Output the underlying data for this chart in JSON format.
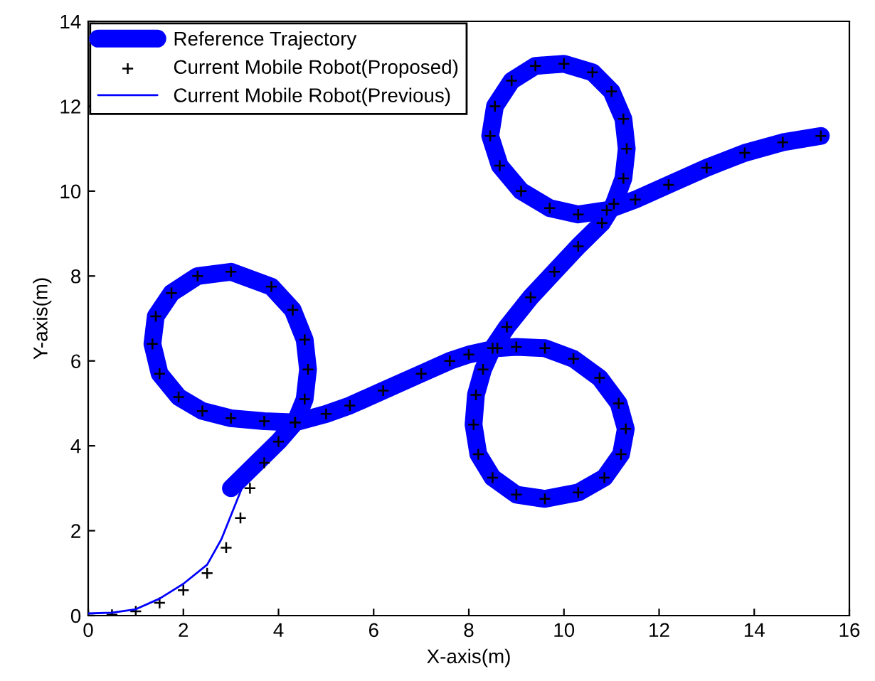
{
  "chart_data": {
    "type": "line",
    "xlabel": "X-axis(m)",
    "ylabel": "Y-axis(m)",
    "xlim": [
      0,
      16
    ],
    "ylim": [
      0,
      14
    ],
    "xticks": [
      0,
      2,
      4,
      6,
      8,
      10,
      12,
      14,
      16
    ],
    "yticks": [
      0,
      2,
      4,
      6,
      8,
      10,
      12,
      14
    ],
    "legend": "top left",
    "series": [
      {
        "name": "Reference Trajectory",
        "color": "#0000ff",
        "line_style": "solid",
        "x": [
          3.0,
          3.5,
          4.0,
          4.35,
          4.55,
          4.62,
          4.55,
          4.3,
          3.85,
          3.0,
          2.3,
          1.75,
          1.42,
          1.35,
          1.5,
          1.9,
          2.4,
          3.0,
          3.7,
          4.35,
          5.0,
          5.5,
          6.2,
          7.0,
          7.6,
          8.0,
          8.6,
          9.0,
          9.6,
          10.2,
          10.75,
          11.15,
          11.3,
          11.2,
          10.85,
          10.3,
          9.6,
          9.0,
          8.5,
          8.2,
          8.1,
          8.15,
          8.3,
          8.5,
          8.8,
          9.3,
          9.8,
          10.3,
          10.8,
          11.05,
          11.25,
          11.32,
          11.25,
          11.0,
          10.6,
          10.0,
          9.4,
          8.9,
          8.55,
          8.45,
          8.65,
          9.1,
          9.7,
          10.3,
          10.9,
          11.5,
          12.2,
          13.0,
          13.8,
          14.6,
          15.4
        ],
        "values": [
          3.0,
          3.55,
          4.1,
          4.55,
          5.1,
          5.8,
          6.5,
          7.2,
          7.75,
          8.1,
          8.0,
          7.6,
          7.05,
          6.4,
          5.7,
          5.15,
          4.82,
          4.65,
          4.58,
          4.55,
          4.75,
          4.95,
          5.3,
          5.7,
          6.0,
          6.15,
          6.3,
          6.33,
          6.3,
          6.05,
          5.6,
          5.0,
          4.4,
          3.8,
          3.25,
          2.9,
          2.75,
          2.85,
          3.25,
          3.8,
          4.5,
          5.2,
          5.8,
          6.3,
          6.8,
          7.5,
          8.1,
          8.7,
          9.25,
          9.7,
          10.3,
          11.0,
          11.7,
          12.35,
          12.8,
          13.0,
          12.95,
          12.6,
          12.0,
          11.3,
          10.6,
          10.0,
          9.6,
          9.45,
          9.55,
          9.8,
          10.15,
          10.55,
          10.9,
          11.15,
          11.3
        ]
      },
      {
        "name": "Current Mobile Robot(Proposed)",
        "type": "scatter",
        "color": "#000000",
        "marker": "cross",
        "x": [
          0,
          0.5,
          1.0,
          1.5,
          2.0,
          2.5,
          2.9,
          3.2,
          3.4,
          3.7,
          4.0,
          4.35,
          4.55,
          4.62,
          4.55,
          4.3,
          3.85,
          3.0,
          2.3,
          1.75,
          1.42,
          1.35,
          1.5,
          1.9,
          2.4,
          3.0,
          3.7,
          4.35,
          5.0,
          5.5,
          6.2,
          7.0,
          7.6,
          8.0,
          8.6,
          9.0,
          9.6,
          10.2,
          10.75,
          11.15,
          11.3,
          11.2,
          10.85,
          10.3,
          9.6,
          9.0,
          8.5,
          8.2,
          8.1,
          8.15,
          8.3,
          8.5,
          8.8,
          9.3,
          9.8,
          10.3,
          10.8,
          11.05,
          11.25,
          11.32,
          11.25,
          11.0,
          10.6,
          10.0,
          9.4,
          8.9,
          8.55,
          8.45,
          8.65,
          9.1,
          9.7,
          10.3,
          10.9,
          11.5,
          12.2,
          13.0,
          13.8,
          14.6,
          15.4
        ],
        "values": [
          0,
          0.02,
          0.1,
          0.3,
          0.6,
          1.0,
          1.6,
          2.3,
          3.0,
          3.6,
          4.1,
          4.55,
          5.1,
          5.8,
          6.5,
          7.2,
          7.75,
          8.1,
          8.0,
          7.6,
          7.05,
          6.4,
          5.7,
          5.15,
          4.82,
          4.65,
          4.58,
          4.55,
          4.75,
          4.95,
          5.3,
          5.7,
          6.0,
          6.15,
          6.3,
          6.33,
          6.3,
          6.05,
          5.6,
          5.0,
          4.4,
          3.8,
          3.25,
          2.9,
          2.75,
          2.85,
          3.25,
          3.8,
          4.5,
          5.2,
          5.8,
          6.3,
          6.8,
          7.5,
          8.1,
          8.7,
          9.25,
          9.7,
          10.3,
          11.0,
          11.7,
          12.35,
          12.8,
          13.0,
          12.95,
          12.6,
          12.0,
          11.3,
          10.6,
          10.0,
          9.6,
          9.45,
          9.55,
          9.8,
          10.15,
          10.55,
          10.9,
          11.15,
          11.3
        ]
      },
      {
        "name": "Current Mobile Robot(Previous)",
        "color": "#0000ff",
        "line_style": "solid",
        "x": [
          0,
          0.5,
          1.0,
          1.5,
          2.0,
          2.5,
          2.8,
          3.05,
          3.3,
          3.7
        ],
        "values": [
          0.05,
          0.07,
          0.15,
          0.4,
          0.75,
          1.2,
          1.8,
          2.5,
          3.2,
          3.8
        ]
      }
    ]
  }
}
